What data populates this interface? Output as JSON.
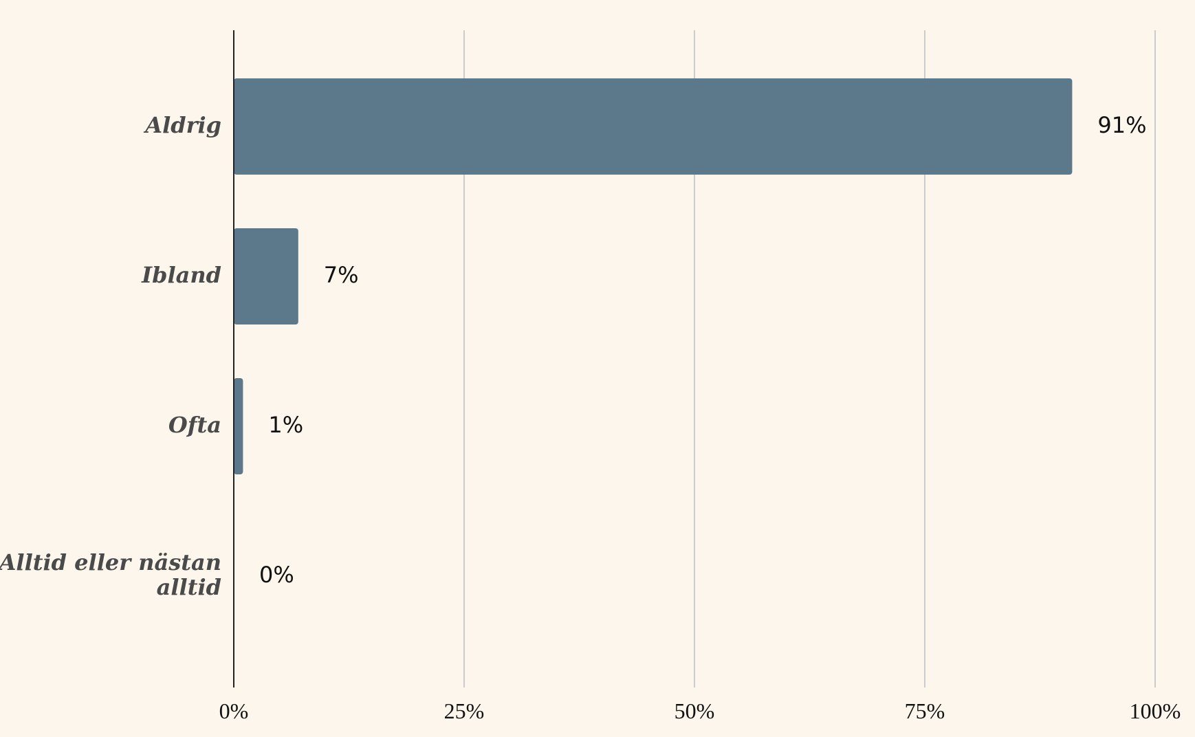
{
  "chart_data": {
    "type": "bar",
    "orientation": "horizontal",
    "categories": [
      "Aldrig",
      "Ibland",
      "Ofta",
      "Alltid eller nästan alltid"
    ],
    "category_lines": [
      [
        "Aldrig"
      ],
      [
        "Ibland"
      ],
      [
        "Ofta"
      ],
      [
        "Alltid eller nästan",
        "alltid"
      ]
    ],
    "values": [
      91,
      7,
      1,
      0
    ],
    "value_labels": [
      "91%",
      "7%",
      "1%",
      "0%"
    ],
    "xlim": [
      0,
      100
    ],
    "xticks": [
      0,
      25,
      50,
      75,
      100
    ],
    "xtick_labels": [
      "0%",
      "25%",
      "50%",
      "75%",
      "100%"
    ],
    "grid": "vertical",
    "title": "",
    "xlabel": "",
    "ylabel": "",
    "colors": {
      "background": "#fdf6ec",
      "bar": "#5c788b",
      "grid": "#cccccc",
      "axis": "#222222"
    }
  }
}
